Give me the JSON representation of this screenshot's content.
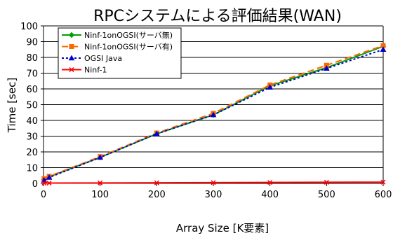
{
  "chart_data": {
    "type": "line",
    "title": "RPCシステムによる評価結果(WAN)",
    "xlabel": "Array Size [K要素]",
    "ylabel": "Time [sec]",
    "xlim": [
      0,
      600
    ],
    "ylim": [
      0,
      100
    ],
    "x_ticks": [
      0,
      100,
      200,
      300,
      400,
      500,
      600
    ],
    "y_ticks": [
      0,
      10,
      20,
      30,
      40,
      50,
      60,
      70,
      80,
      90,
      100
    ],
    "grid": "horizontal",
    "legend_position": "top-left",
    "series": [
      {
        "name": "Ninf-1onOGSI(サーバ無)",
        "color": "#00a000",
        "marker": "diamond",
        "dash": "solid",
        "x": [
          1,
          10,
          100,
          200,
          300,
          400,
          500,
          600
        ],
        "y": [
          2.5,
          4.2,
          16.5,
          31.5,
          43.5,
          62,
          73.5,
          87
        ]
      },
      {
        "name": "Ninf-1onOGSI(サーバ有)",
        "color": "#ff6600",
        "marker": "square",
        "dash": "dashed",
        "x": [
          1,
          10,
          100,
          200,
          300,
          400,
          500,
          600
        ],
        "y": [
          3,
          4.5,
          17,
          32,
          44.5,
          62.5,
          75,
          87.5
        ]
      },
      {
        "name": "OGSI Java",
        "color": "#0000cc",
        "marker": "triangle",
        "dash": "dotted",
        "x": [
          1,
          10,
          100,
          200,
          300,
          400,
          500,
          600
        ],
        "y": [
          2,
          3.8,
          16.5,
          31.5,
          43.5,
          61,
          73,
          85
        ]
      },
      {
        "name": "Ninf-1",
        "color": "#ff0000",
        "marker": "x",
        "dash": "solid",
        "x": [
          1,
          10,
          100,
          200,
          300,
          400,
          500,
          600
        ],
        "y": [
          0.2,
          0.2,
          0.3,
          0.4,
          0.5,
          0.6,
          0.7,
          0.8
        ]
      }
    ]
  }
}
